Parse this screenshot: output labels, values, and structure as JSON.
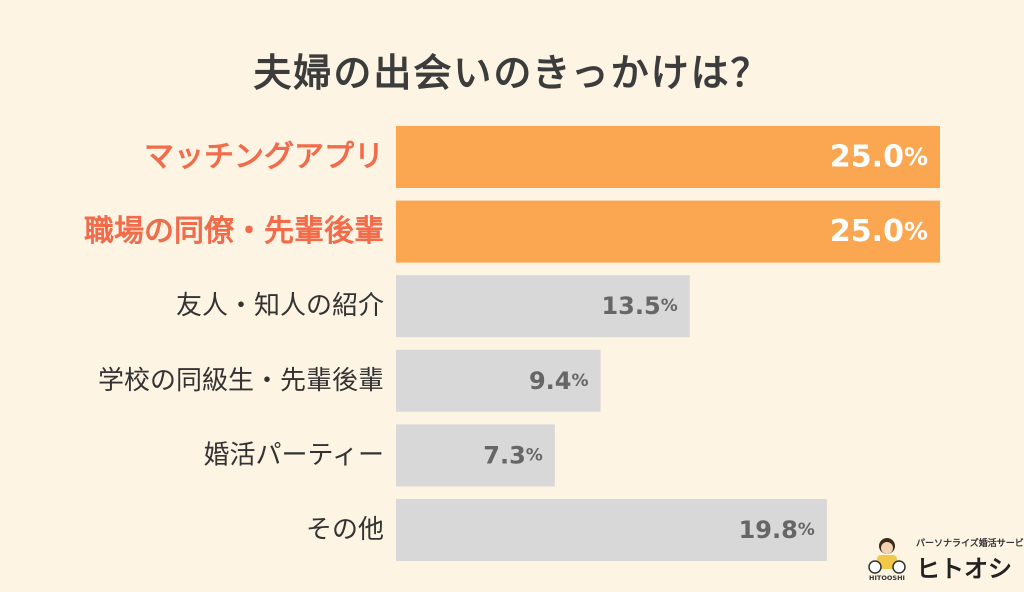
{
  "chart_data": {
    "type": "bar",
    "orientation": "horizontal",
    "title": "夫婦の出会いのきっかけは？",
    "categories": [
      "マッチングアプリ",
      "職場の同僚・先輩後輩",
      "友人・知人の紹介",
      "学校の同級生・先輩後輩",
      "婚活パーティー",
      "その他"
    ],
    "values": [
      25.0,
      25.0,
      13.5,
      9.4,
      7.3,
      19.8
    ],
    "value_labels": [
      "25.0",
      "25.0",
      "13.5",
      "9.4",
      "7.3",
      "19.8"
    ],
    "unit": "%",
    "highlighted": [
      true,
      true,
      false,
      false,
      false,
      false
    ],
    "xlim": [
      0,
      25
    ],
    "grid": false,
    "legend": "none",
    "colors": {
      "highlight_bar": "#fba650",
      "normal_bar": "#d8d8d8",
      "highlight_label": "#f26b4a",
      "normal_label": "#333333",
      "background": "#fdf4e3"
    }
  },
  "logo": {
    "tagline": "パーソナライズ婚活サービス",
    "name": "ヒトオシ",
    "mark_text": "HITOOSHI",
    "icon": "person-mascot-icon"
  }
}
